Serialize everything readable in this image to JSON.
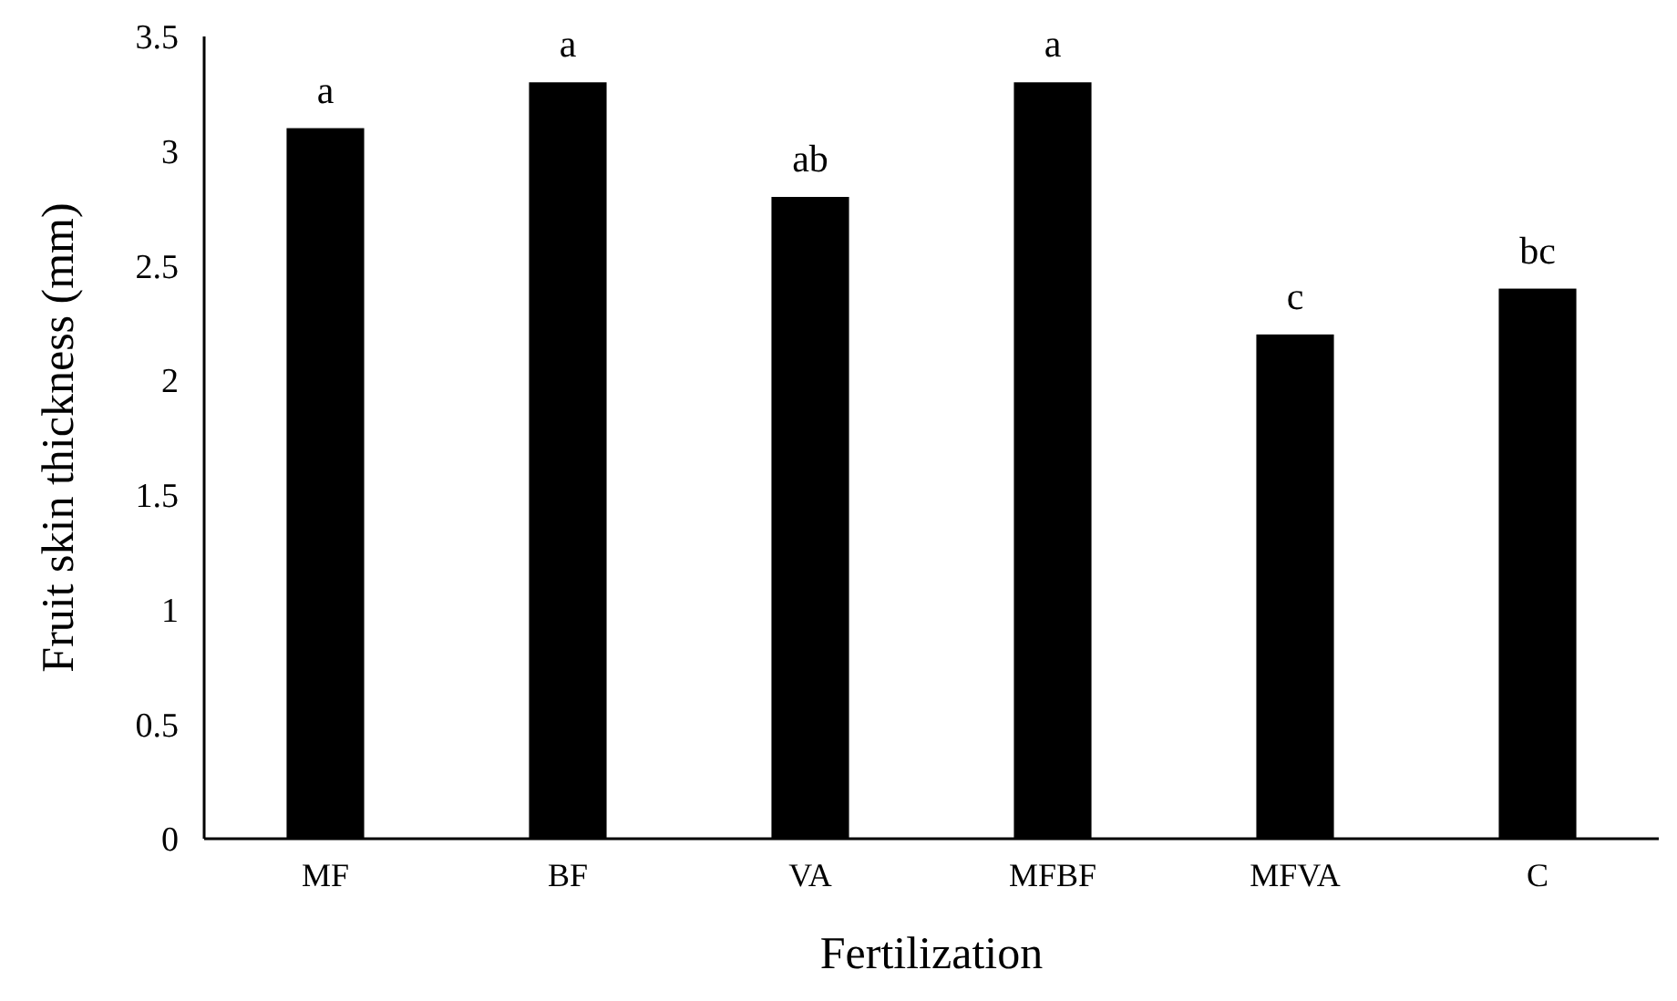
{
  "chart_data": {
    "type": "bar",
    "xlabel": "Fertilization",
    "ylabel": "Fruit skin thickness (mm)",
    "categories": [
      "MF",
      "BF",
      "VA",
      "MFBF",
      "MFVA",
      "C"
    ],
    "values": [
      3.1,
      3.3,
      2.8,
      3.3,
      2.2,
      2.4
    ],
    "color": "#000000",
    "ylim": [
      0,
      3.5
    ],
    "yticks": [
      0,
      0.5,
      1,
      1.5,
      2,
      2.5,
      3,
      3.5
    ],
    "grid": false,
    "annotations": [
      {
        "text": "a",
        "x": "MF",
        "y": 3.1
      },
      {
        "text": "a",
        "x": "BF",
        "y": 3.3
      },
      {
        "text": "ab",
        "x": "VA",
        "y": 2.8
      },
      {
        "text": "a",
        "x": "MFBF",
        "y": 3.3
      },
      {
        "text": "c",
        "x": "MFVA",
        "y": 2.2
      },
      {
        "text": "bc",
        "x": "C",
        "y": 2.4
      }
    ]
  }
}
